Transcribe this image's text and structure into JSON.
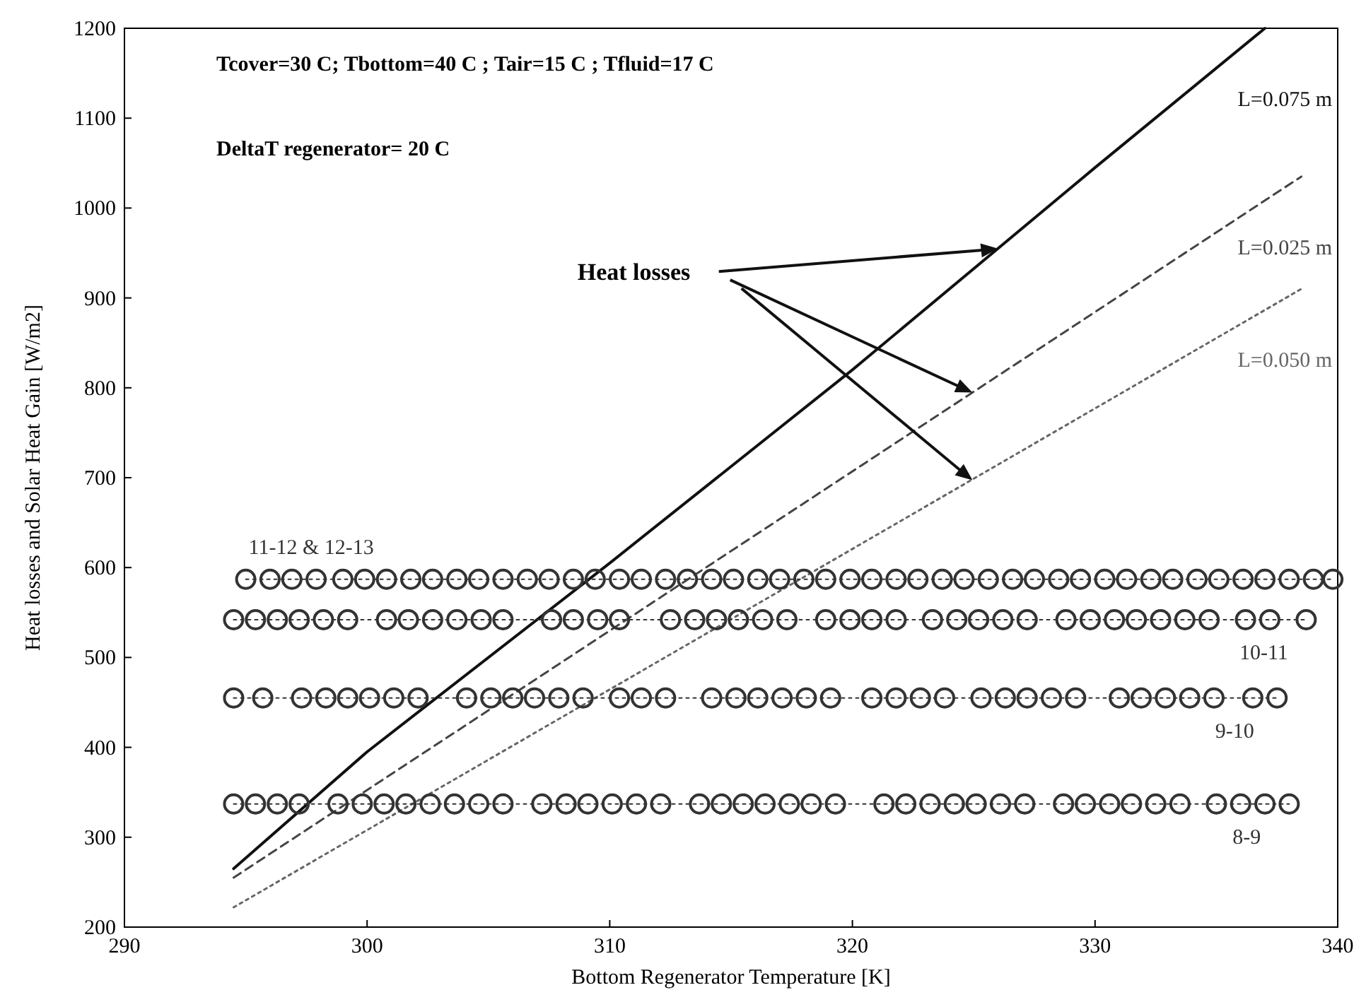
{
  "chart_data": {
    "type": "line",
    "xlabel": "Bottom Regenerator Temperature [K]",
    "ylabel": "Heat losses and Solar Heat Gain [W/m2]",
    "xlim": [
      290,
      340
    ],
    "ylim": [
      200,
      1200
    ],
    "xticks": [
      290,
      300,
      310,
      320,
      330,
      340
    ],
    "yticks": [
      200,
      300,
      400,
      500,
      600,
      700,
      800,
      900,
      1000,
      1100,
      1200
    ],
    "grid": false,
    "annotations": [
      "Tcover=30 C; Tbottom=40 C ; Tair=15 C ; Tfluid=17 C",
      "DeltaT regenerator= 20 C",
      {
        "text": "Heat losses",
        "x": 326,
        "y": 955
      }
    ],
    "series": [
      {
        "name": "L=0.075 m",
        "color": "#111111",
        "line_style": "solid",
        "marker": "none",
        "x": [
          294.5,
          300,
          310,
          320,
          330,
          337
        ],
        "values": [
          265,
          395,
          605,
          820,
          1045,
          1200
        ]
      },
      {
        "name": "L=0.025 m",
        "color": "#444444",
        "line_style": "dashed",
        "marker": "none",
        "x": [
          294.5,
          338.5
        ],
        "values": [
          255,
          1035
        ]
      },
      {
        "name": "L=0.050 m",
        "color": "#666666",
        "line_style": "dotted",
        "marker": "none",
        "x": [
          294.5,
          338.5
        ],
        "values": [
          222,
          910
        ]
      },
      {
        "name": "11-12 & 12-13",
        "color": "#333333",
        "line_style": "dotted",
        "marker": "circle",
        "x": [
          295.0,
          296.0,
          296.9,
          297.9,
          299.0,
          299.9,
          300.8,
          301.8,
          302.7,
          303.7,
          304.6,
          305.6,
          306.6,
          307.5,
          308.5,
          309.4,
          310.4,
          311.3,
          312.3,
          313.2,
          314.2,
          315.1,
          316.1,
          317.0,
          318.0,
          318.9,
          319.9,
          320.8,
          321.8,
          322.7,
          323.7,
          324.6,
          325.6,
          326.6,
          327.5,
          328.5,
          329.4,
          330.4,
          331.3,
          332.3,
          333.2,
          334.2,
          335.1,
          336.1,
          337.0,
          338.0,
          339.0,
          339.8
        ],
        "values": [
          587,
          587,
          587,
          587,
          587,
          587,
          587,
          587,
          587,
          587,
          587,
          587,
          587,
          587,
          587,
          587,
          587,
          587,
          587,
          587,
          587,
          587,
          587,
          587,
          587,
          587,
          587,
          587,
          587,
          587,
          587,
          587,
          587,
          587,
          587,
          587,
          587,
          587,
          587,
          587,
          587,
          587,
          587,
          587,
          587,
          587,
          587,
          587
        ]
      },
      {
        "name": "10-11",
        "color": "#333333",
        "line_style": "dotted",
        "marker": "circle",
        "x": [
          294.5,
          295.4,
          296.3,
          297.2,
          298.2,
          299.2,
          300.8,
          301.7,
          302.7,
          303.7,
          304.7,
          305.6,
          307.6,
          308.5,
          309.5,
          310.4,
          312.5,
          313.5,
          314.4,
          315.3,
          316.3,
          317.3,
          318.9,
          319.9,
          320.8,
          321.8,
          323.3,
          324.3,
          325.2,
          326.2,
          327.2,
          328.8,
          329.8,
          330.8,
          331.7,
          332.7,
          333.7,
          334.7,
          336.2,
          337.2,
          338.7
        ],
        "values": [
          542,
          542,
          542,
          542,
          542,
          542,
          542,
          542,
          542,
          542,
          542,
          542,
          542,
          542,
          542,
          542,
          542,
          542,
          542,
          542,
          542,
          542,
          542,
          542,
          542,
          542,
          542,
          542,
          542,
          542,
          542,
          542,
          542,
          542,
          542,
          542,
          542,
          542,
          542,
          542,
          542
        ]
      },
      {
        "name": "9-10",
        "color": "#333333",
        "line_style": "dotted",
        "marker": "circle",
        "x": [
          294.5,
          295.7,
          297.3,
          298.3,
          299.2,
          300.1,
          301.1,
          302.1,
          304.1,
          305.1,
          306.0,
          306.9,
          307.9,
          308.9,
          310.4,
          311.3,
          312.3,
          314.2,
          315.2,
          316.1,
          317.1,
          318.1,
          319.1,
          320.8,
          321.8,
          322.8,
          323.8,
          325.3,
          326.3,
          327.2,
          328.2,
          329.2,
          331.0,
          331.9,
          332.9,
          333.9,
          334.9,
          336.5,
          337.5
        ],
        "values": [
          455,
          455,
          455,
          455,
          455,
          455,
          455,
          455,
          455,
          455,
          455,
          455,
          455,
          455,
          455,
          455,
          455,
          455,
          455,
          455,
          455,
          455,
          455,
          455,
          455,
          455,
          455,
          455,
          455,
          455,
          455,
          455,
          455,
          455,
          455,
          455,
          455,
          455,
          455
        ]
      },
      {
        "name": "8-9",
        "color": "#333333",
        "line_style": "dotted",
        "marker": "circle",
        "x": [
          294.5,
          295.4,
          296.3,
          297.2,
          298.8,
          299.8,
          300.7,
          301.6,
          302.6,
          303.6,
          304.6,
          305.6,
          307.2,
          308.2,
          309.1,
          310.1,
          311.1,
          312.1,
          313.7,
          314.6,
          315.5,
          316.4,
          317.4,
          318.3,
          319.3,
          321.3,
          322.2,
          323.2,
          324.2,
          325.1,
          326.1,
          327.1,
          328.7,
          329.6,
          330.6,
          331.5,
          332.5,
          333.5,
          335.0,
          336.0,
          337.0,
          338.0
        ],
        "values": [
          337,
          337,
          337,
          337,
          337,
          337,
          337,
          337,
          337,
          337,
          337,
          337,
          337,
          337,
          337,
          337,
          337,
          337,
          337,
          337,
          337,
          337,
          337,
          337,
          337,
          337,
          337,
          337,
          337,
          337,
          337,
          337,
          337,
          337,
          337,
          337,
          337,
          337,
          337,
          337,
          337,
          337
        ]
      }
    ]
  }
}
